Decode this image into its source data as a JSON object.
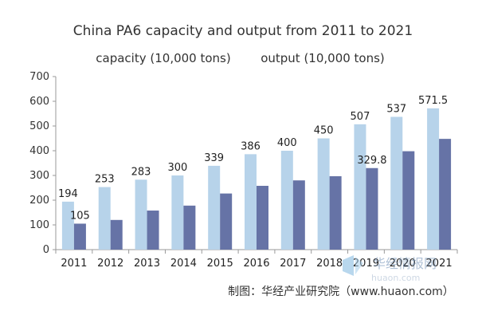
{
  "chart_data": {
    "type": "bar",
    "title": "China PA6 capacity and output from 2011 to 2021",
    "categories": [
      "2011",
      "2012",
      "2013",
      "2014",
      "2015",
      "2016",
      "2017",
      "2018",
      "2019",
      "2020",
      "2021"
    ],
    "series": [
      {
        "name": "capacity (10,000 tons)",
        "color": "#b7d3ea",
        "values": [
          194,
          253,
          283,
          300,
          339,
          386,
          400,
          450,
          507,
          537,
          571.5
        ],
        "labels": [
          "194",
          "253",
          "283",
          "300",
          "339",
          "386",
          "400",
          "450",
          "507",
          "537",
          "571.5"
        ]
      },
      {
        "name": "output (10,000 tons)",
        "color": "#6673a6",
        "values": [
          105,
          120,
          158,
          178,
          227,
          258,
          280,
          297,
          329.8,
          398,
          448
        ],
        "labels": [
          "105",
          null,
          null,
          null,
          null,
          null,
          null,
          null,
          "329.8",
          null,
          null
        ]
      }
    ],
    "ylim": [
      0,
      700
    ],
    "yticks": [
      0,
      100,
      200,
      300,
      400,
      500,
      600,
      700
    ],
    "grid": false,
    "legend_position": "top"
  },
  "source_note": "制图：华经产业研究院（www.huaon.com）",
  "watermark": {
    "text": "华经情报网",
    "subtext": "huaon.com"
  }
}
